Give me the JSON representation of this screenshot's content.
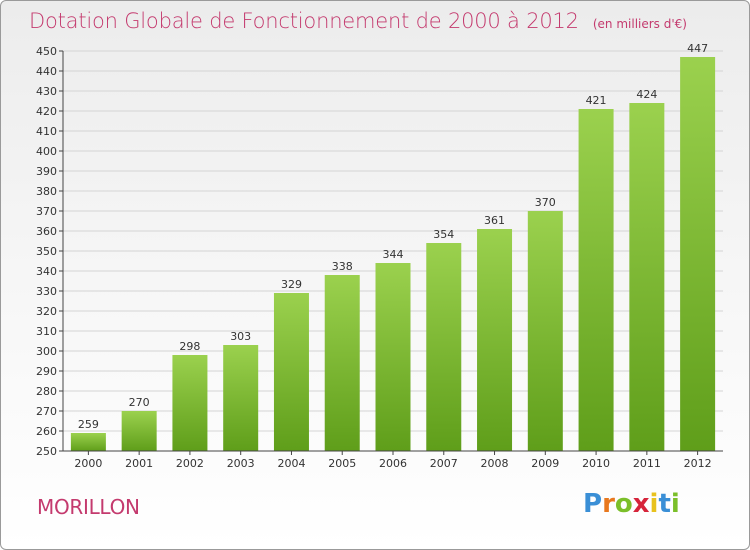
{
  "title": "Dotation Globale de Fonctionnement de 2000 à 2012",
  "subtitle": "(en milliers d'€)",
  "commune": "MORILLON",
  "logo_text": "Proxiti",
  "colors": {
    "title": "#c43a6e",
    "bar_top": "#9bd14e",
    "bar_bottom": "#5f9e1a",
    "grid": "#d4d4d4",
    "axis": "#444444"
  },
  "chart_data": {
    "type": "bar",
    "title": "Dotation Globale de Fonctionnement de 2000 à 2012",
    "subtitle": "(en milliers d'€)",
    "xlabel": "",
    "ylabel": "",
    "categories": [
      "2000",
      "2001",
      "2002",
      "2003",
      "2004",
      "2005",
      "2006",
      "2007",
      "2008",
      "2009",
      "2010",
      "2011",
      "2012"
    ],
    "values": [
      259,
      270,
      298,
      303,
      329,
      338,
      344,
      354,
      361,
      370,
      421,
      424,
      447
    ],
    "ylim": [
      250,
      450
    ],
    "ytick_step": 10,
    "grid": true,
    "data_labels": true
  }
}
